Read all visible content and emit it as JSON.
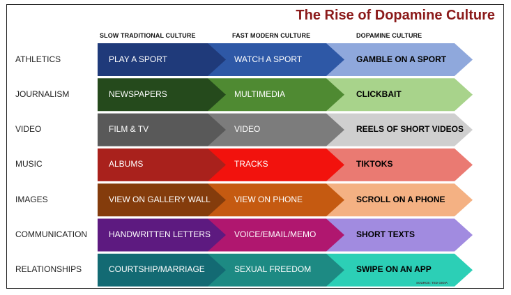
{
  "title": "The Rise of Dopamine Culture",
  "columns": [
    "SLOW TRADITIONAL CULTURE",
    "FAST MODERN CULTURE",
    "DOPAMINE CULTURE"
  ],
  "rows": [
    {
      "label": "ATHLETICS",
      "cells": [
        "PLAY A SPORT",
        "WATCH A SPORT",
        "GAMBLE ON A SPORT"
      ],
      "colors": [
        "#1f3a7a",
        "#2e58a6",
        "#8fa8dc"
      ]
    },
    {
      "label": "JOURNALISM",
      "cells": [
        "NEWSPAPERS",
        "MULTIMEDIA",
        "CLICKBAIT"
      ],
      "colors": [
        "#254a1c",
        "#4f8a32",
        "#a8d38b"
      ]
    },
    {
      "label": "VIDEO",
      "cells": [
        "FILM &  TV",
        "VIDEO",
        "REELS OF SHORT VIDEOS"
      ],
      "colors": [
        "#595959",
        "#7c7c7c",
        "#cfcfcf"
      ]
    },
    {
      "label": "MUSIC",
      "cells": [
        "ALBUMS",
        "TRACKS",
        "TIKTOKS"
      ],
      "colors": [
        "#a9211c",
        "#f2120d",
        "#ea7a72"
      ]
    },
    {
      "label": "IMAGES",
      "cells": [
        "VIEW ON GALLERY WALL",
        "VIEW ON PHONE",
        "SCROLL ON A PHONE"
      ],
      "colors": [
        "#843c0c",
        "#c55a11",
        "#f4b183"
      ]
    },
    {
      "label": "COMMUNICATION",
      "cells": [
        "HANDWRITTEN LETTERS",
        "VOICE/EMAIL/MEMO",
        "SHORT TEXTS"
      ],
      "colors": [
        "#5d1a80",
        "#b0176f",
        "#a18be0"
      ]
    },
    {
      "label": "RELATIONSHIPS",
      "cells": [
        "COURTSHIP/MARRIAGE",
        "SEXUAL FREEDOM",
        "SWIPE ON AN APP"
      ],
      "colors": [
        "#136a73",
        "#1d8a83",
        "#2ccfb6"
      ]
    }
  ],
  "source": "SOURCE: TED GIOIA"
}
